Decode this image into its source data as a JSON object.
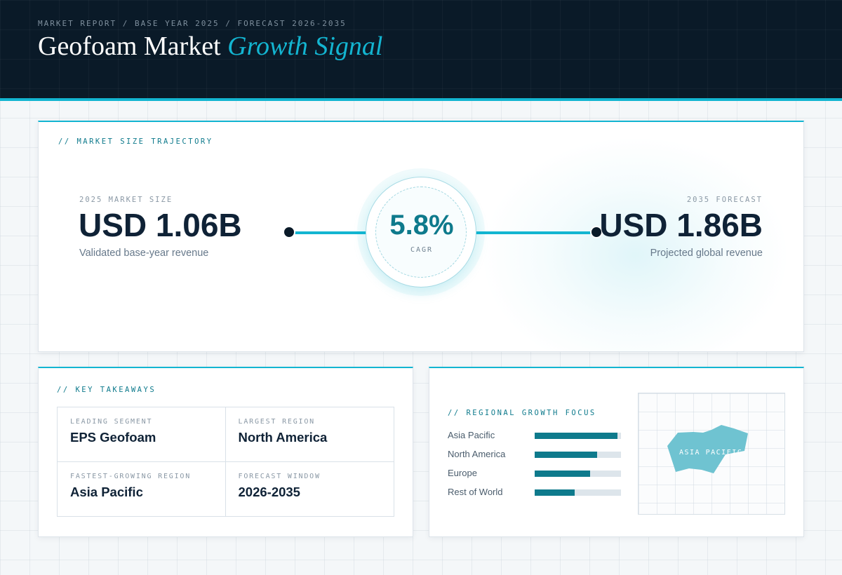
{
  "header": {
    "breadcrumb": "MARKET REPORT / BASE YEAR 2025 / FORECAST 2026-2035",
    "title_main": "Geofoam Market",
    "title_accent": "Growth Signal"
  },
  "trajectory": {
    "section_label": "// MARKET SIZE TRAJECTORY",
    "start": {
      "eyebrow": "2025 MARKET SIZE",
      "value": "USD 1.06B",
      "caption": "Validated base-year revenue"
    },
    "end": {
      "eyebrow": "2035 FORECAST",
      "value": "USD 1.86B",
      "caption": "Projected global revenue"
    },
    "cagr": {
      "value": "5.8%",
      "label": "CAGR"
    }
  },
  "takeaways": {
    "section_label": "// KEY TAKEAWAYS",
    "items": [
      {
        "label": "LEADING SEGMENT",
        "value": "EPS Geofoam"
      },
      {
        "label": "LARGEST REGION",
        "value": "North America"
      },
      {
        "label": "FASTEST-GROWING REGION",
        "value": "Asia Pacific"
      },
      {
        "label": "FORECAST WINDOW",
        "value": "2026-2035"
      }
    ]
  },
  "regional": {
    "section_label": "// REGIONAL GROWTH FOCUS",
    "bars": [
      {
        "name": "Asia Pacific",
        "level": 0.96
      },
      {
        "name": "North America",
        "level": 0.72
      },
      {
        "name": "Europe",
        "level": 0.64
      },
      {
        "name": "Rest of World",
        "level": 0.46
      }
    ],
    "map_label": "ASIA PACIFIC",
    "map_color": "#6fc3d1"
  },
  "colors": {
    "header_bg": "#0a1a28",
    "accent": "#13b5d1",
    "accent_dark": "#0e7a8c",
    "text_dark": "#0f2236"
  }
}
